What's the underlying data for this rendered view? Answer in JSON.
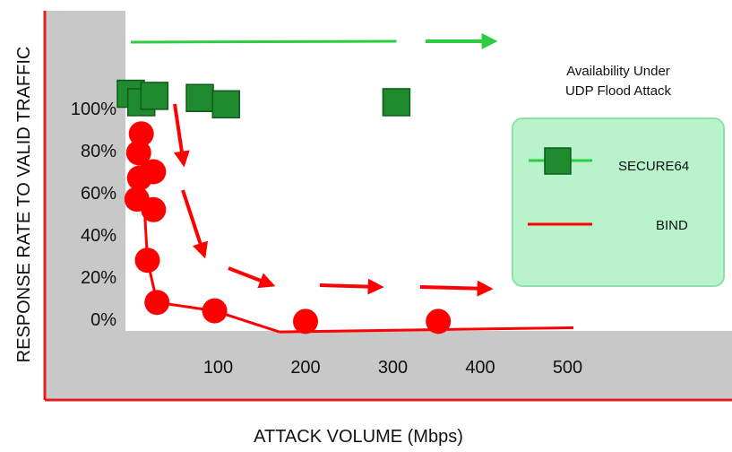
{
  "chart_data": {
    "type": "scatter",
    "title": "Availability Under UDP Flood Attack",
    "title_lines": [
      "Availability Under",
      "UDP Flood Attack"
    ],
    "xlabel": "ATTACK VOLUME (Mbps)",
    "ylabel": "RESPONSE RATE TO VALID TRAFFIC",
    "x_ticks": [
      100,
      200,
      300,
      400,
      500
    ],
    "y_ticks": [
      0,
      20,
      40,
      60,
      80,
      100
    ],
    "y_tick_labels": [
      "0%",
      "20%",
      "40%",
      "60%",
      "80%",
      "100%"
    ],
    "xlim": [
      0,
      560
    ],
    "ylim": [
      -6,
      114
    ],
    "grid": false,
    "legend_position": "right",
    "series": [
      {
        "name": "SECURE64",
        "color": "#1f8a2e",
        "line_color": "#2ecc40",
        "marker": "square",
        "points": [
          {
            "x": 0,
            "y": 107
          },
          {
            "x": 12,
            "y": 103
          },
          {
            "x": 27,
            "y": 106
          },
          {
            "x": 79,
            "y": 105
          },
          {
            "x": 109,
            "y": 102
          },
          {
            "x": 304,
            "y": 103
          }
        ]
      },
      {
        "name": "BIND",
        "color": "#ff0000",
        "line_color": "#ff0000",
        "marker": "circle",
        "points": [
          {
            "x": 12,
            "y": 88
          },
          {
            "x": 9,
            "y": 79
          },
          {
            "x": 26,
            "y": 70
          },
          {
            "x": 10,
            "y": 67
          },
          {
            "x": 7,
            "y": 57
          },
          {
            "x": 26,
            "y": 52
          },
          {
            "x": 19,
            "y": 28
          },
          {
            "x": 30,
            "y": 8
          },
          {
            "x": 96,
            "y": 4
          },
          {
            "x": 200,
            "y": -1
          },
          {
            "x": 352,
            "y": -1
          }
        ]
      }
    ]
  }
}
